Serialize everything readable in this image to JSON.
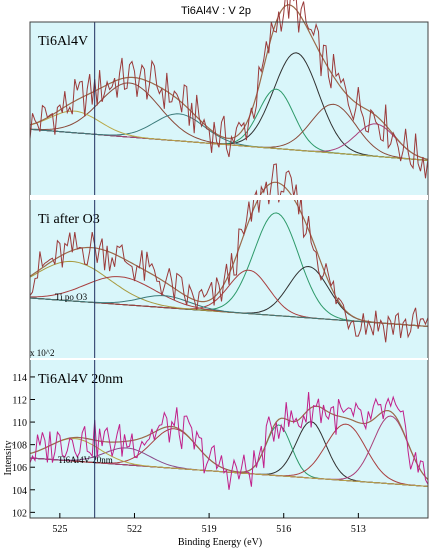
{
  "chart_data": {
    "type": "line",
    "title": "Ti6Al4V : V 2p",
    "xlabel": "Binding Energy (eV)",
    "ylabel": "Intensity",
    "x_reversed": true,
    "xlim": [
      526.2,
      510.2
    ],
    "x_ticks": [
      "525",
      "522",
      "519",
      "516",
      "513"
    ],
    "vertical_marker_x": 523.6,
    "background_color": "#d9f6fa",
    "panels": [
      {
        "label": "Ti6Al4V",
        "ylim": [
          -2,
          30
        ],
        "peaks": [
          {
            "center": 515.5,
            "height": 18,
            "width": 0.9,
            "color": "#303030"
          },
          {
            "center": 516.3,
            "height": 11,
            "width": 0.7,
            "color": "#2e9a6a"
          },
          {
            "center": 514.0,
            "height": 9,
            "width": 0.9,
            "color": "#8a4a3a"
          },
          {
            "center": 512.3,
            "height": 6,
            "width": 0.8,
            "color": "#a8407a"
          },
          {
            "center": 522.2,
            "height": 10,
            "width": 1.2,
            "color": "#8a4a3a"
          },
          {
            "center": 520.2,
            "height": 5,
            "width": 1.0,
            "color": "#3a7a7a"
          },
          {
            "center": 524.4,
            "height": 4,
            "width": 1.0,
            "color": "#b8a848"
          }
        ]
      },
      {
        "label": "Ti after O3",
        "ylim": [
          -4,
          36
        ],
        "annotation": "Ti po O3",
        "peaks": [
          {
            "center": 516.3,
            "height": 26,
            "width": 0.9,
            "color": "#2e9a6a"
          },
          {
            "center": 515.0,
            "height": 13,
            "width": 0.8,
            "color": "#303030"
          },
          {
            "center": 517.4,
            "height": 11,
            "width": 0.8,
            "color": "#a84040"
          },
          {
            "center": 524.5,
            "height": 10,
            "width": 1.5,
            "color": "#a89a40"
          },
          {
            "center": 522.6,
            "height": 7,
            "width": 1.4,
            "color": "#a84040"
          },
          {
            "center": 520.8,
            "height": 3,
            "width": 1.0,
            "color": "#3a7a7a"
          }
        ]
      },
      {
        "label": "Ti6Al4V 20nm",
        "ylim": [
          101.5,
          115.5
        ],
        "y_ticks": [
          102,
          104,
          106,
          108,
          110,
          112,
          114
        ],
        "multiplier": "x 10^2",
        "annotation": "Ti6Al4V 20nm",
        "peaks": [
          {
            "center": 514.9,
            "height": 5.0,
            "width": 0.6,
            "color": "#303030"
          },
          {
            "center": 516.2,
            "height": 4.5,
            "width": 0.5,
            "color": "#2e9a6a"
          },
          {
            "center": 513.5,
            "height": 5.0,
            "width": 0.8,
            "color": "#a84040"
          },
          {
            "center": 511.7,
            "height": 6.0,
            "width": 0.7,
            "color": "#a8407a"
          },
          {
            "center": 520.4,
            "height": 3.5,
            "width": 0.9,
            "color": "#a84040"
          },
          {
            "center": 522.3,
            "height": 1.5,
            "width": 0.9,
            "color": "#8a4a8a"
          },
          {
            "center": 524.4,
            "height": 2.0,
            "width": 1.0,
            "color": "#b8a848"
          }
        ]
      }
    ]
  }
}
